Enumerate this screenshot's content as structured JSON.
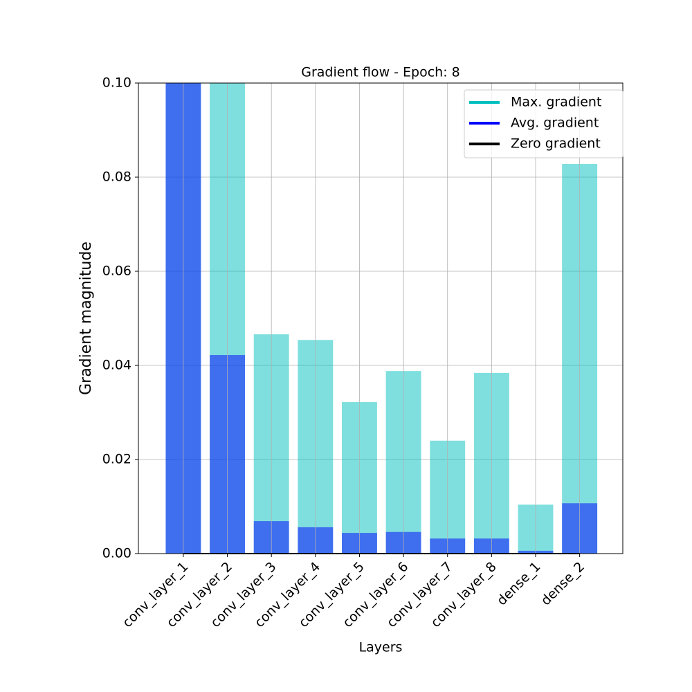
{
  "chart_data": {
    "type": "bar",
    "title": "Gradient flow - Epoch: 8",
    "xlabel": "Layers",
    "ylabel": "Gradient magnitude",
    "categories": [
      "conv_layer_1",
      "conv_layer_2",
      "conv_layer_3",
      "conv_layer_4",
      "conv_layer_5",
      "conv_layer_6",
      "conv_layer_7",
      "conv_layer_8",
      "dense_1",
      "dense_2"
    ],
    "series": [
      {
        "name": "Max. gradient",
        "color": "#00bfbf",
        "values": [
          0.1,
          0.1,
          0.0466,
          0.0454,
          0.0322,
          0.0388,
          0.024,
          0.0384,
          0.0104,
          0.0828
        ]
      },
      {
        "name": "Avg. gradient",
        "color": "#0000ff",
        "values": [
          0.1,
          0.0422,
          0.0069,
          0.0056,
          0.0044,
          0.0046,
          0.0032,
          0.0032,
          0.0006,
          0.0107
        ]
      },
      {
        "name": "Zero gradient",
        "color": "#000000",
        "values": [
          0,
          0,
          0,
          0,
          0,
          0,
          0,
          0,
          0,
          0
        ]
      }
    ],
    "ylim": [
      0,
      0.1
    ],
    "yticks": [
      {
        "value": 0,
        "label": "0.00"
      },
      {
        "value": 0.02,
        "label": "0.02"
      },
      {
        "value": 0.04,
        "label": "0.04"
      },
      {
        "value": 0.06,
        "label": "0.06"
      },
      {
        "value": 0.08,
        "label": "0.08"
      },
      {
        "value": 0.1,
        "label": "0.10"
      }
    ],
    "grid": true,
    "legend": "upper right"
  }
}
